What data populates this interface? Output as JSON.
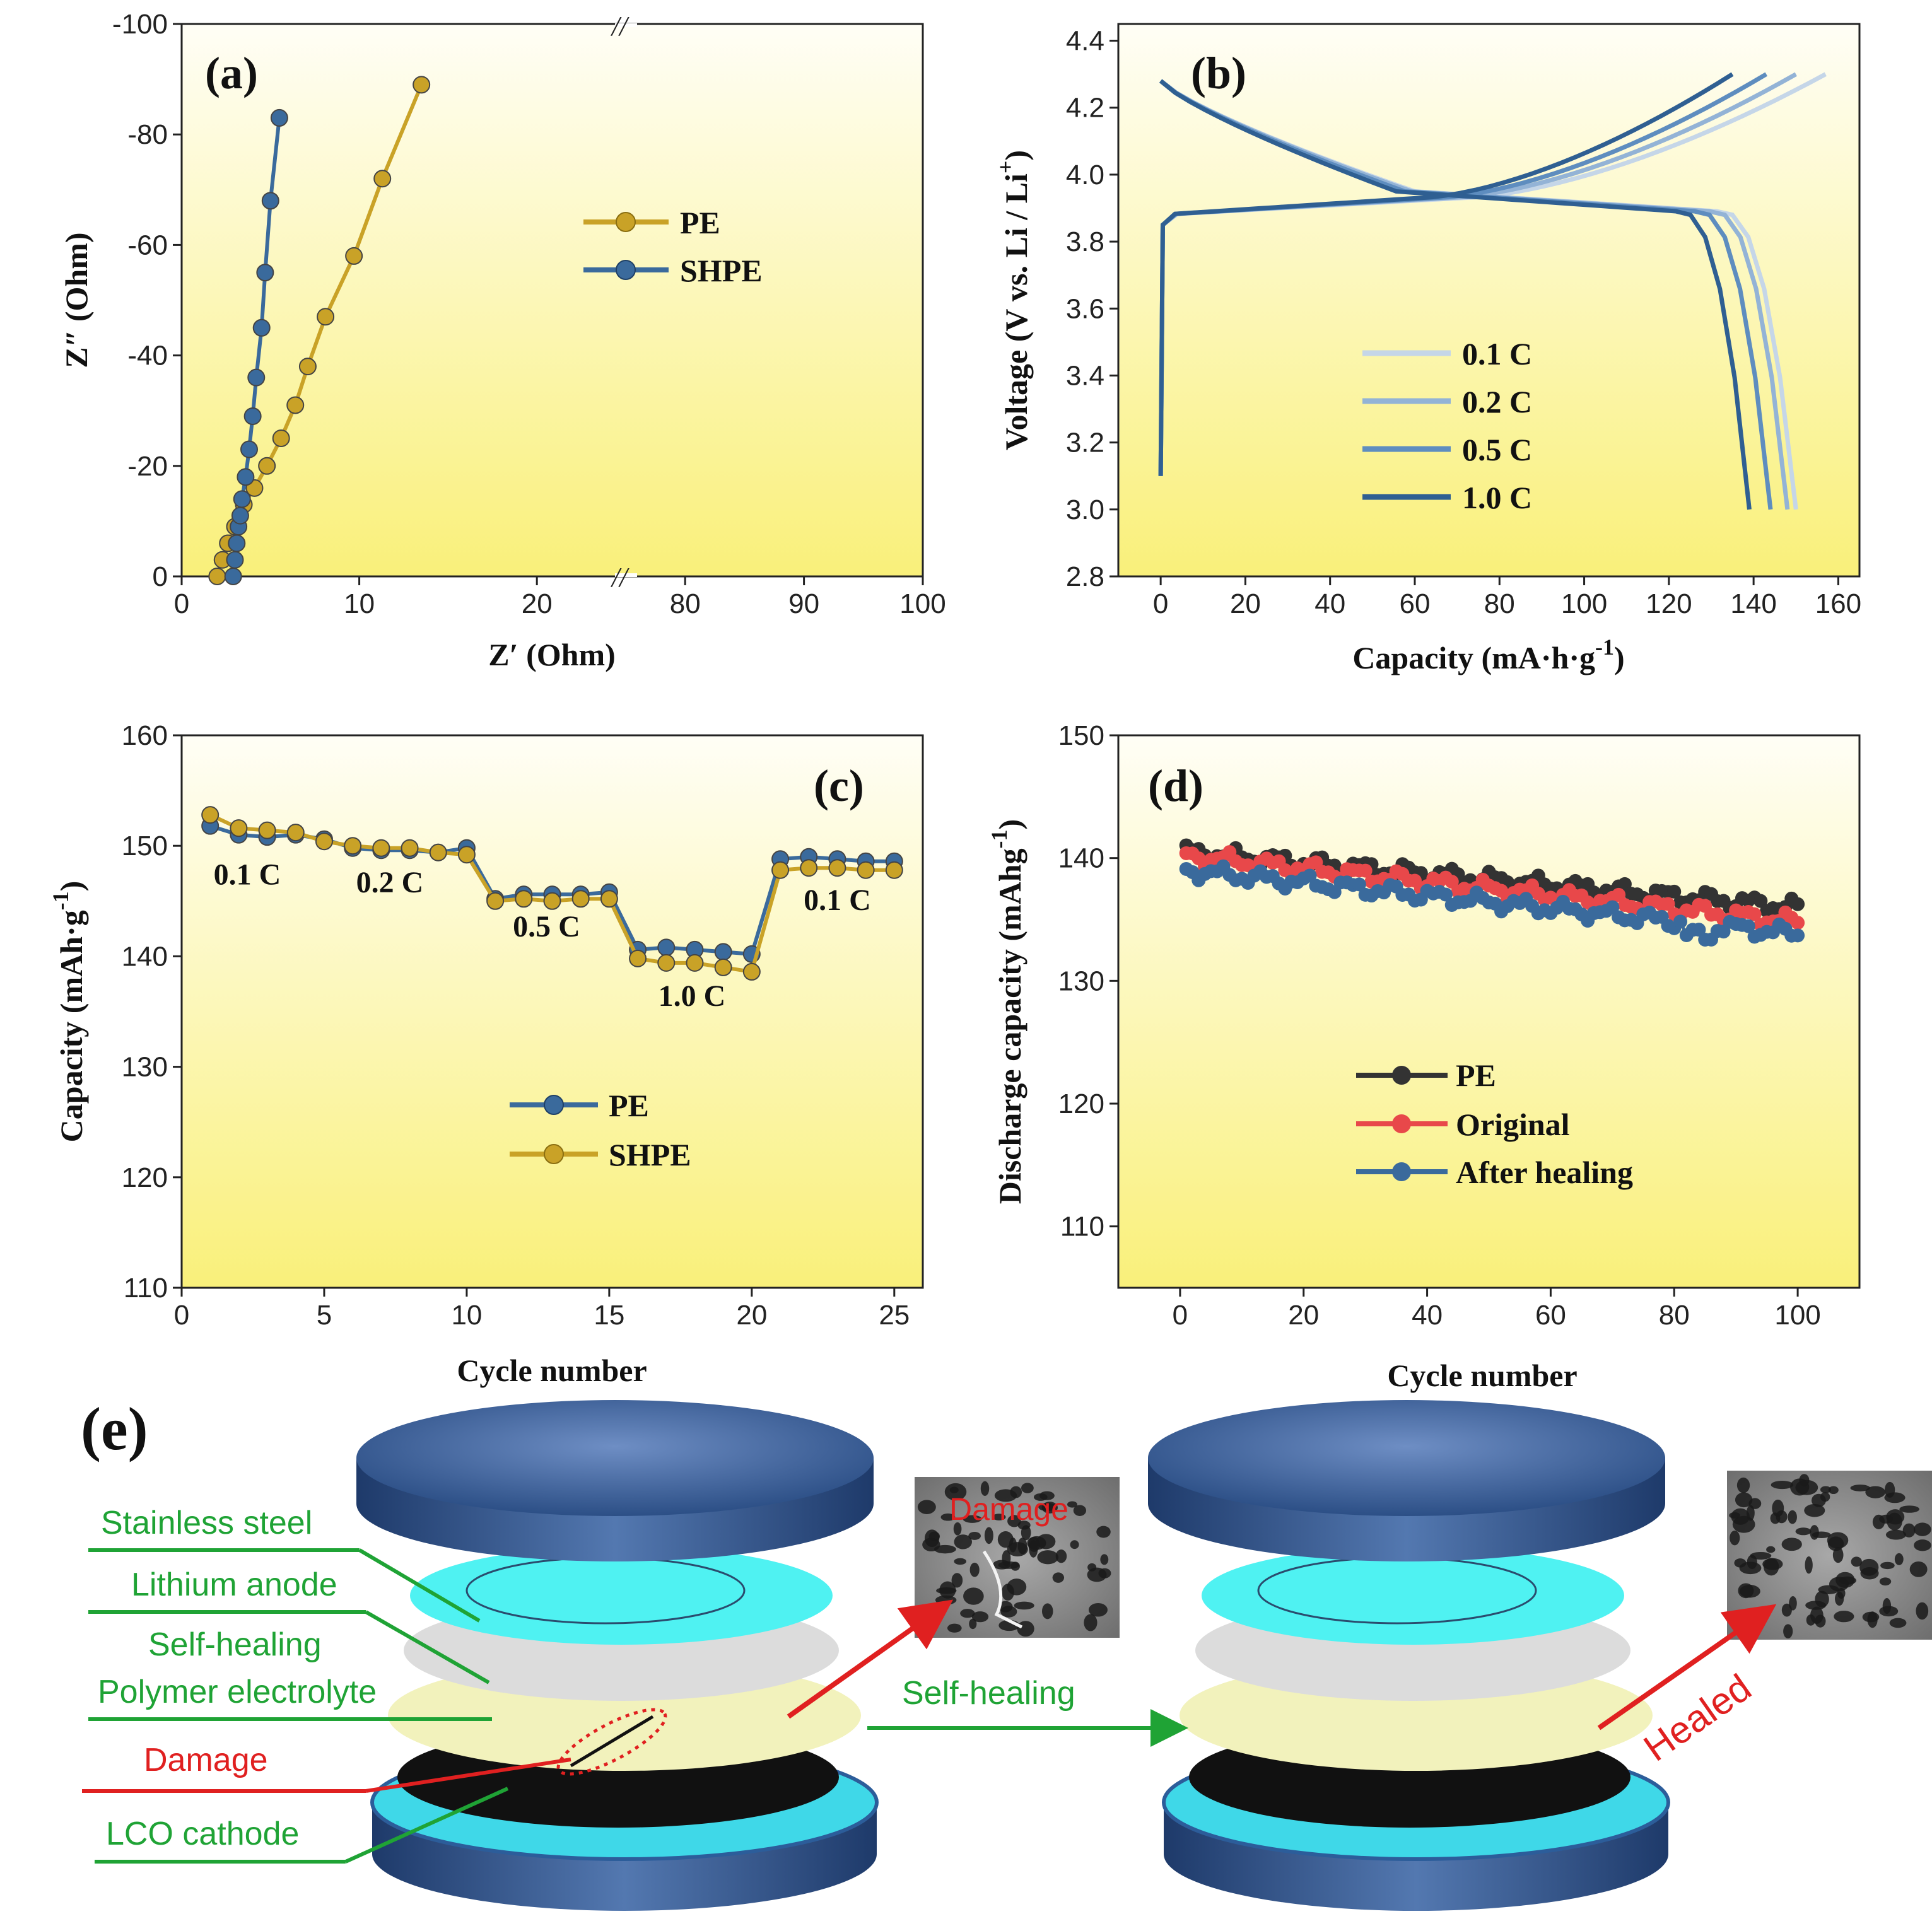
{
  "chart_data": [
    {
      "panel": "a",
      "type": "line",
      "panel_label": "(a)",
      "xlabel": "Z′ (Ohm)",
      "ylabel": "Z″ (Ohm)",
      "xlim_left": [
        0,
        25
      ],
      "xlim_right": [
        75,
        100
      ],
      "x_break": "//",
      "ylim": [
        0,
        -100
      ],
      "xticks_left": [
        0,
        10,
        20
      ],
      "xticks_right": [
        80,
        90,
        100
      ],
      "yticks": [
        0,
        -20,
        -40,
        -60,
        -80,
        -100
      ],
      "series": [
        {
          "name": "PE",
          "color": "#C9A227",
          "x": [
            2.0,
            2.3,
            2.6,
            3.0,
            3.5,
            4.1,
            4.8,
            5.6,
            6.4,
            7.1,
            8.1,
            9.7,
            11.3,
            13.5
          ],
          "y": [
            0,
            -3,
            -6,
            -9,
            -13,
            -16,
            -20,
            -25,
            -31,
            -38,
            -47,
            -58,
            -72,
            -89
          ]
        },
        {
          "name": "SHPE",
          "color": "#3A6A9C",
          "x": [
            2.9,
            3.0,
            3.1,
            3.2,
            3.3,
            3.4,
            3.6,
            3.8,
            4.0,
            4.2,
            4.5,
            4.7,
            5.0,
            5.5
          ],
          "y": [
            0,
            -3,
            -6,
            -9,
            -11,
            -14,
            -18,
            -23,
            -29,
            -36,
            -45,
            -55,
            -68,
            -83
          ]
        }
      ]
    },
    {
      "panel": "b",
      "type": "line",
      "panel_label": "(b)",
      "xlabel": "Capacity (mA·h·g",
      "xlabel_sup": "-1",
      "xlabel_end": ")",
      "ylabel": "Voltage (V vs. Li / Li",
      "ylabel_sup": "+",
      "ylabel_end": ")",
      "xlim": [
        -10,
        165
      ],
      "ylim": [
        2.8,
        4.45
      ],
      "xticks": [
        0,
        20,
        40,
        60,
        80,
        100,
        120,
        140,
        160
      ],
      "yticks": [
        2.8,
        3.0,
        3.2,
        3.4,
        3.6,
        3.8,
        4.0,
        4.2,
        4.4
      ],
      "series": [
        {
          "name": "0.1 C",
          "color": "#C5D6E8",
          "charge_capacity": 157,
          "discharge_capacity": 150
        },
        {
          "name": "0.2 C",
          "color": "#93B3D6",
          "charge_capacity": 150,
          "discharge_capacity": 148
        },
        {
          "name": "0.5 C",
          "color": "#5E8DBF",
          "charge_capacity": 143,
          "discharge_capacity": 144
        },
        {
          "name": "1.0 C",
          "color": "#2F5F92",
          "charge_capacity": 135,
          "discharge_capacity": 139
        }
      ]
    },
    {
      "panel": "c",
      "type": "line",
      "panel_label": "(c)",
      "xlabel": "Cycle number",
      "ylabel": "Capacity (mAh·g",
      "ylabel_sup": "-1",
      "ylabel_end": ")",
      "xlim": [
        0,
        26
      ],
      "ylim": [
        110,
        160
      ],
      "xticks": [
        0,
        5,
        10,
        15,
        20,
        25
      ],
      "yticks": [
        110,
        120,
        130,
        140,
        150,
        160
      ],
      "rate_labels": [
        {
          "text": "0.1 C",
          "x": 2.3,
          "y": 146.5
        },
        {
          "text": "0.2 C",
          "x": 7.3,
          "y": 145.8
        },
        {
          "text": "0.5 C",
          "x": 12.8,
          "y": 141.8
        },
        {
          "text": "1.0 C",
          "x": 17.9,
          "y": 135.5
        },
        {
          "text": "0.1 C",
          "x": 23.0,
          "y": 144.2
        }
      ],
      "x": [
        1,
        2,
        3,
        4,
        5,
        6,
        7,
        8,
        9,
        10,
        11,
        12,
        13,
        14,
        15,
        16,
        17,
        18,
        19,
        20,
        21,
        22,
        23,
        24,
        25
      ],
      "series": [
        {
          "name": "PE",
          "color": "#3A6A9C",
          "values": [
            151.8,
            151.0,
            150.8,
            151.0,
            150.6,
            149.8,
            149.6,
            149.6,
            149.4,
            149.8,
            145.2,
            145.6,
            145.6,
            145.6,
            145.8,
            140.6,
            140.8,
            140.6,
            140.4,
            140.2,
            148.8,
            149.0,
            148.8,
            148.6,
            148.6
          ]
        },
        {
          "name": "SHPE",
          "color": "#C9A227",
          "values": [
            152.8,
            151.6,
            151.4,
            151.2,
            150.4,
            150.0,
            149.8,
            149.8,
            149.4,
            149.2,
            145.0,
            145.2,
            145.0,
            145.2,
            145.2,
            139.8,
            139.4,
            139.4,
            139.0,
            138.6,
            147.8,
            148.0,
            148.0,
            147.8,
            147.8
          ]
        }
      ]
    },
    {
      "panel": "d",
      "type": "line",
      "panel_label": "(d)",
      "xlabel": "Cycle number",
      "ylabel": "Discharge capacity (mAhg",
      "ylabel_sup": "-1",
      "ylabel_end": ")",
      "xlim": [
        -10,
        110
      ],
      "ylim": [
        105,
        150
      ],
      "xticks": [
        0,
        20,
        40,
        60,
        80,
        100
      ],
      "yticks": [
        110,
        120,
        130,
        140,
        150
      ],
      "series": [
        {
          "name": "PE",
          "color": "#333333",
          "start": 140.5,
          "end": 136.0
        },
        {
          "name": "Original",
          "color": "#E8484A",
          "start": 140.2,
          "end": 134.8
        },
        {
          "name": "After healing",
          "color": "#3A6A9C",
          "start": 139.0,
          "end": 133.8
        }
      ]
    }
  ],
  "schematic": {
    "panel_label": "(e)",
    "labels": {
      "stainless_steel": "Stainless steel",
      "lithium_anode": "Lithium anode",
      "self_healing": "Self-healing",
      "polymer_electrolyte": "Polymer electrolyte",
      "damage": "Damage",
      "lco_cathode": "LCO cathode",
      "self_healing_arrow": "Self-healing",
      "sem_damage": "Damage",
      "healed": "Healed"
    },
    "colors": {
      "label_green": "#1FA335",
      "label_red": "#E02020",
      "cap_blue": "#2C4F86",
      "lithium_cyan": "#4FF2F2",
      "separator_gray": "#DCDCDC",
      "electrolyte_yellow": "#F2F2BC",
      "cathode_black": "#111111"
    }
  }
}
